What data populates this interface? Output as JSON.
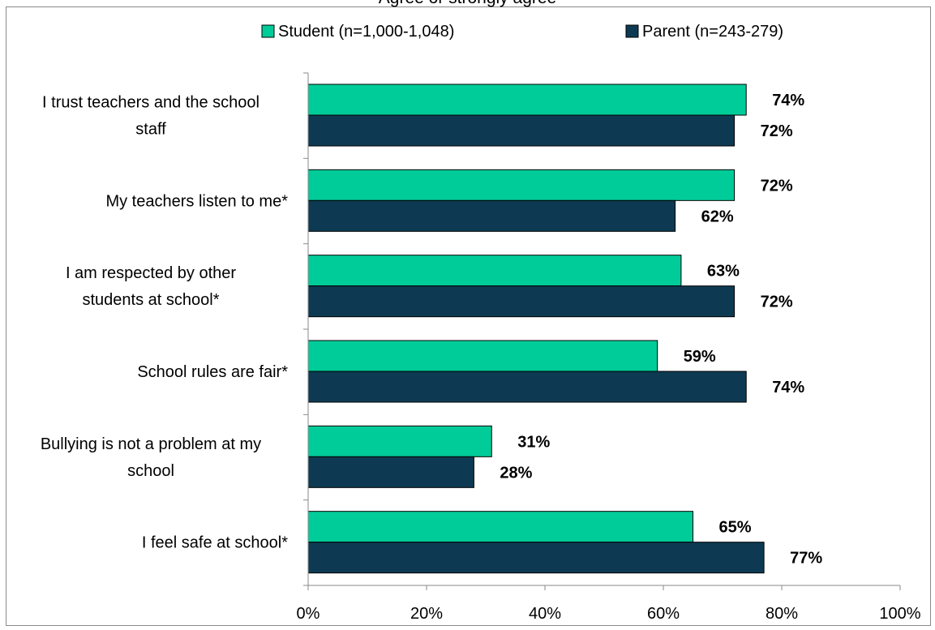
{
  "chart_data": {
    "type": "bar",
    "orientation": "horizontal",
    "title": "Agree or strongly agree",
    "categories": [
      [
        "I trust teachers and the school",
        "staff"
      ],
      [
        "My teachers listen to me*"
      ],
      [
        "I am respected by other",
        "students at school*"
      ],
      [
        "School rules are fair*"
      ],
      [
        "Bullying is not a problem at my",
        "school"
      ],
      [
        "I feel safe at school*"
      ]
    ],
    "series": [
      {
        "name": "Student (n=1,000-1,048)",
        "color": "#00cc99",
        "values": [
          74,
          72,
          63,
          59,
          31,
          65
        ],
        "labels": [
          "74%",
          "72%",
          "63%",
          "59%",
          "31%",
          "65%"
        ]
      },
      {
        "name": "Parent (n=243-279)",
        "color": "#0d3a52",
        "values": [
          72,
          62,
          72,
          74,
          28,
          77
        ],
        "labels": [
          "72%",
          "62%",
          "72%",
          "74%",
          "28%",
          "77%"
        ]
      }
    ],
    "xlim": [
      0,
      100
    ],
    "xticks": [
      "0%",
      "20%",
      "40%",
      "60%",
      "80%",
      "100%"
    ],
    "legend_position": "top",
    "grid": false
  }
}
